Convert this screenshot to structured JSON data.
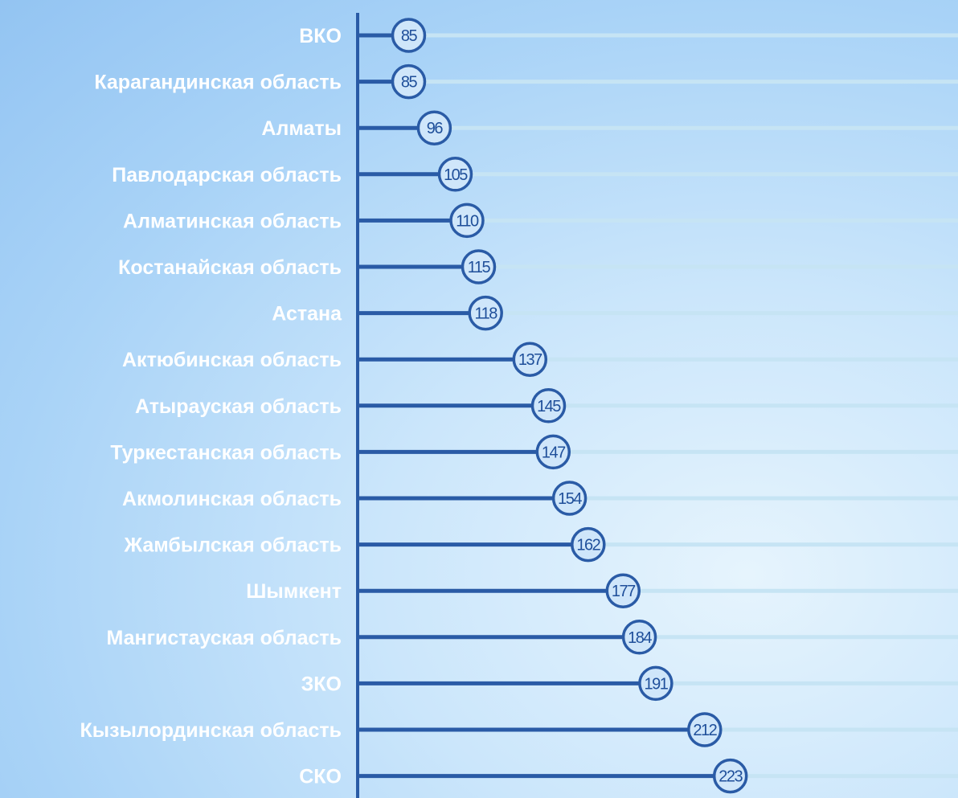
{
  "chart_data": {
    "type": "bar",
    "orientation": "horizontal",
    "style": "lollipop",
    "categories": [
      "ВКО",
      "Карагандинская область",
      "Алматы",
      "Павлодарская область",
      "Алматинская область",
      "Костанайская область",
      "Астана",
      "Актюбинская область",
      "Атырауская область",
      "Туркестанская область",
      "Акмолинская область",
      "Жамбылская область",
      "Шымкент",
      "Мангистауская область",
      "ЗКО",
      "Кызылординская область",
      "СКО"
    ],
    "values": [
      85,
      85,
      96,
      105,
      110,
      115,
      118,
      137,
      145,
      147,
      154,
      162,
      177,
      184,
      191,
      212,
      223
    ],
    "value_labels": [
      "85",
      "85",
      "96",
      "105",
      "110",
      "115",
      "118",
      "137",
      "145",
      "147",
      "154",
      "162",
      "177",
      "184",
      "191",
      "212",
      "223"
    ],
    "title": "",
    "xlabel": "",
    "ylabel": "",
    "xlim": [
      0,
      225
    ],
    "grid": false,
    "legend": "none",
    "colors": {
      "stem": "#2a5ba6",
      "axis": "#2a5ba6",
      "marker_border": "#2a5ba6",
      "marker_fill": "#cfe6fa",
      "value_text": "#1f4f9a",
      "category_text": "#ffffff",
      "guide_line": "#c6e4f4"
    }
  }
}
